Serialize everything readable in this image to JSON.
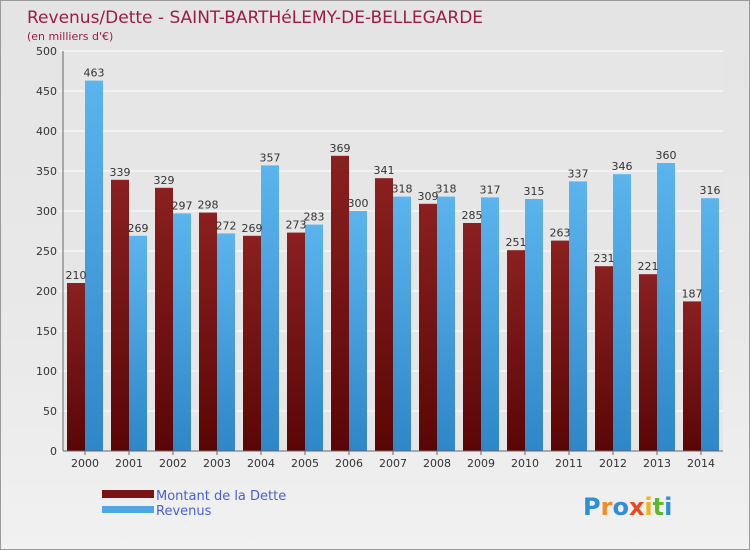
{
  "chart_data": {
    "type": "bar",
    "title": "Revenus/Dette - SAINT-BARTHéLEMY-DE-BELLEGARDE",
    "subtitle": "(en milliers d'€)",
    "categories": [
      "2000",
      "2001",
      "2002",
      "2003",
      "2004",
      "2005",
      "2006",
      "2007",
      "2008",
      "2009",
      "2010",
      "2011",
      "2012",
      "2013",
      "2014"
    ],
    "series": [
      {
        "name": "Montant de la Dette",
        "color": "#7a1414",
        "values": [
          210,
          339,
          329,
          298,
          269,
          273,
          369,
          341,
          309,
          285,
          251,
          263,
          231,
          221,
          187
        ]
      },
      {
        "name": "Revenus",
        "color": "#4ea6e4",
        "values": [
          463,
          269,
          297,
          272,
          357,
          283,
          300,
          318,
          318,
          317,
          315,
          337,
          346,
          360,
          316
        ]
      }
    ],
    "ylim": [
      0,
      500
    ],
    "yticks": [
      0,
      50,
      100,
      150,
      200,
      250,
      300,
      350,
      400,
      450,
      500
    ],
    "grid": true,
    "legend": "bottom-left"
  },
  "logo": {
    "letters": [
      "P",
      "r",
      "o",
      "x",
      "i",
      "t",
      "i"
    ],
    "colors": [
      "#2e8fd8",
      "#f28c1e",
      "#2e8fd8",
      "#e84a1a",
      "#f2b21e",
      "#5cb82e",
      "#2e8fd8"
    ]
  }
}
